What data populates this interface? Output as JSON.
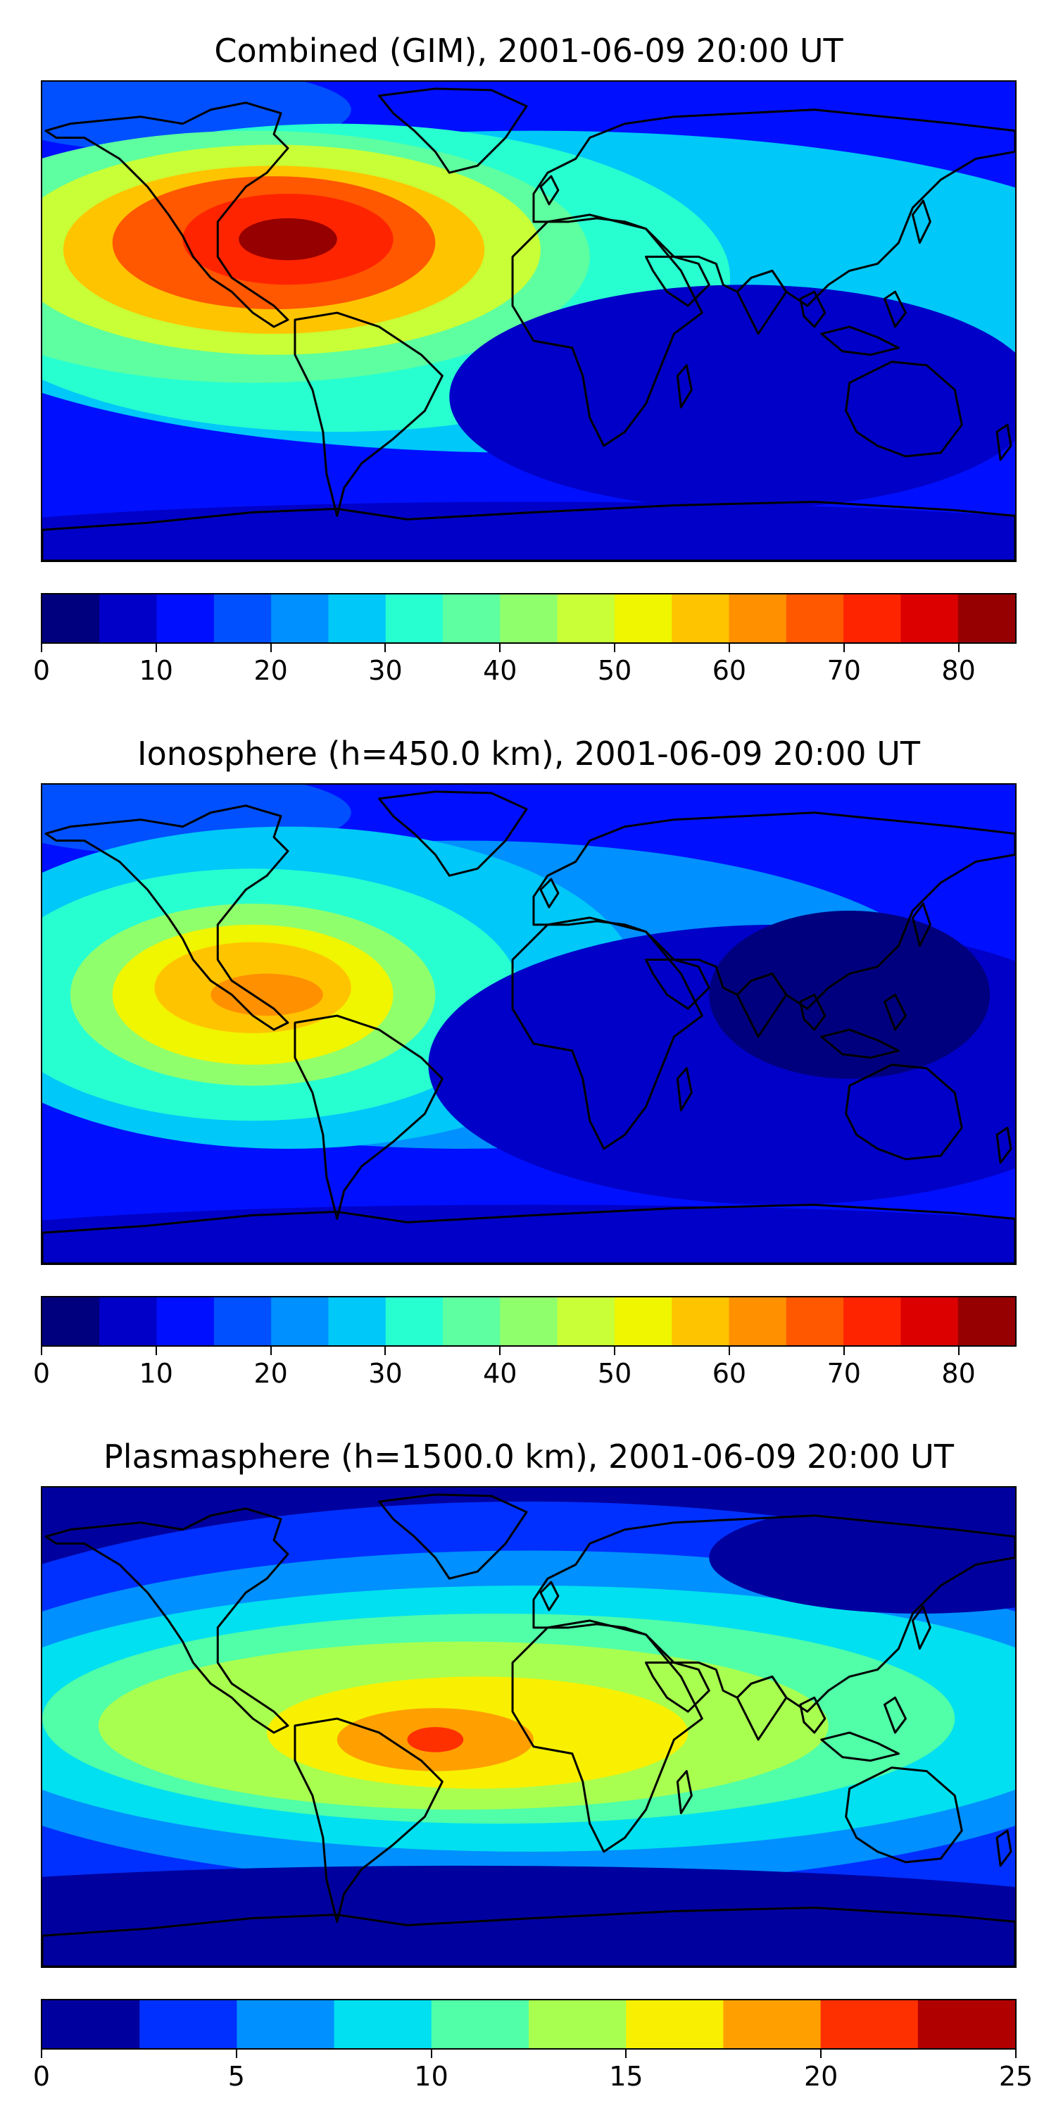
{
  "panels": [
    {
      "title": "Combined (GIM), 2001-06-09 20:00 UT",
      "colorbar": {
        "min": 0,
        "max": 85,
        "step": 5,
        "colors": [
          "#00007f",
          "#0000c8",
          "#0010ff",
          "#0050ff",
          "#0090ff",
          "#00c8f8",
          "#28ffd0",
          "#5effa0",
          "#90ff6c",
          "#c8ff36",
          "#f0f500",
          "#ffc400",
          "#ff9000",
          "#ff5800",
          "#ff2400",
          "#dc0000",
          "#960000"
        ],
        "ticks": [
          "0",
          "10",
          "20",
          "30",
          "40",
          "50",
          "60",
          "70",
          "80"
        ]
      }
    },
    {
      "title": "Ionosphere  (h=450.0 km), 2001-06-09 20:00 UT",
      "colorbar": {
        "min": 0,
        "max": 85,
        "step": 5,
        "colors": [
          "#00007f",
          "#0000c8",
          "#0010ff",
          "#0050ff",
          "#0090ff",
          "#00c8f8",
          "#28ffd0",
          "#5effa0",
          "#90ff6c",
          "#c8ff36",
          "#f0f500",
          "#ffc400",
          "#ff9000",
          "#ff5800",
          "#ff2400",
          "#dc0000",
          "#960000"
        ],
        "ticks": [
          "0",
          "10",
          "20",
          "30",
          "40",
          "50",
          "60",
          "70",
          "80"
        ]
      }
    },
    {
      "title": "Plasmasphere (h=1500.0 km), 2001-06-09 20:00 UT",
      "colorbar": {
        "min": 0,
        "max": 25,
        "step": 2.5,
        "colors": [
          "#00009f",
          "#0030ff",
          "#0090ff",
          "#00e0f0",
          "#50ffa8",
          "#a8ff50",
          "#f8f000",
          "#ffa000",
          "#ff3000",
          "#b00000"
        ],
        "ticks": [
          "0",
          "5",
          "10",
          "15",
          "20",
          "25"
        ]
      }
    }
  ]
}
